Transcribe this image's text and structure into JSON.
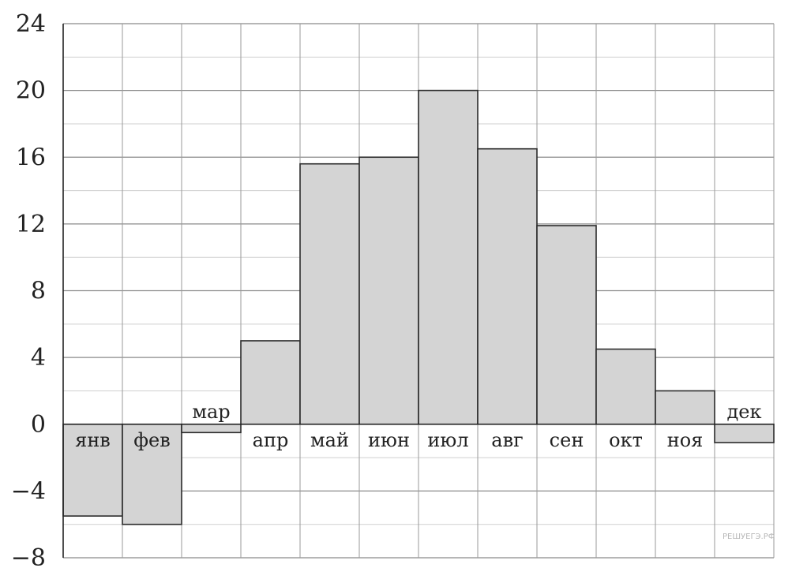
{
  "chart_data": {
    "type": "bar",
    "title": "",
    "xlabel": "",
    "ylabel": "",
    "categories": [
      "янв",
      "фев",
      "мар",
      "апр",
      "май",
      "июн",
      "июл",
      "авг",
      "сен",
      "окт",
      "ноя",
      "дек"
    ],
    "values": [
      -5.5,
      -6,
      -0.5,
      5,
      15.6,
      16,
      20,
      16.5,
      11.9,
      4.5,
      2,
      -1.1
    ],
    "ylim": [
      -8,
      24
    ],
    "yticks": [
      24,
      20,
      16,
      12,
      8,
      4,
      0,
      -4,
      -8
    ],
    "ytick_labels": [
      "24",
      "20",
      "16",
      "12",
      "8",
      "4",
      "0",
      "−4",
      "−8"
    ],
    "grid": true,
    "bar_color": "#d4d4d4",
    "watermark": "РЕШУЕГЭ.РФ"
  }
}
